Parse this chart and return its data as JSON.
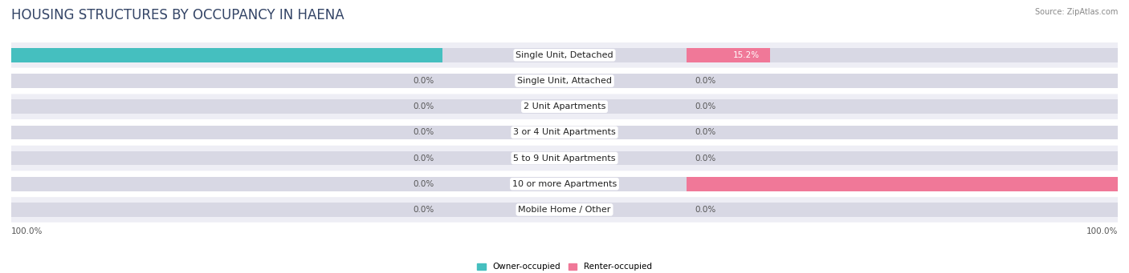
{
  "title": "HOUSING STRUCTURES BY OCCUPANCY IN HAENA",
  "source": "Source: ZipAtlas.com",
  "categories": [
    "Single Unit, Detached",
    "Single Unit, Attached",
    "2 Unit Apartments",
    "3 or 4 Unit Apartments",
    "5 to 9 Unit Apartments",
    "10 or more Apartments",
    "Mobile Home / Other"
  ],
  "owner_pct": [
    84.8,
    0.0,
    0.0,
    0.0,
    0.0,
    0.0,
    0.0
  ],
  "renter_pct": [
    15.2,
    0.0,
    0.0,
    0.0,
    0.0,
    100.0,
    0.0
  ],
  "owner_color": "#45BFBF",
  "renter_color": "#F07898",
  "bar_bg_color": "#D8D8E4",
  "bar_height": 0.55,
  "max_pct": 100.0,
  "title_fontsize": 12,
  "label_fontsize": 8,
  "pct_fontsize": 7.5,
  "axis_label_fontsize": 7.5,
  "background_color": "#FFFFFF",
  "row_bg_even": "#EEEEF5",
  "row_bg_odd": "#FFFFFF",
  "legend_labels": [
    "Owner-occupied",
    "Renter-occupied"
  ]
}
